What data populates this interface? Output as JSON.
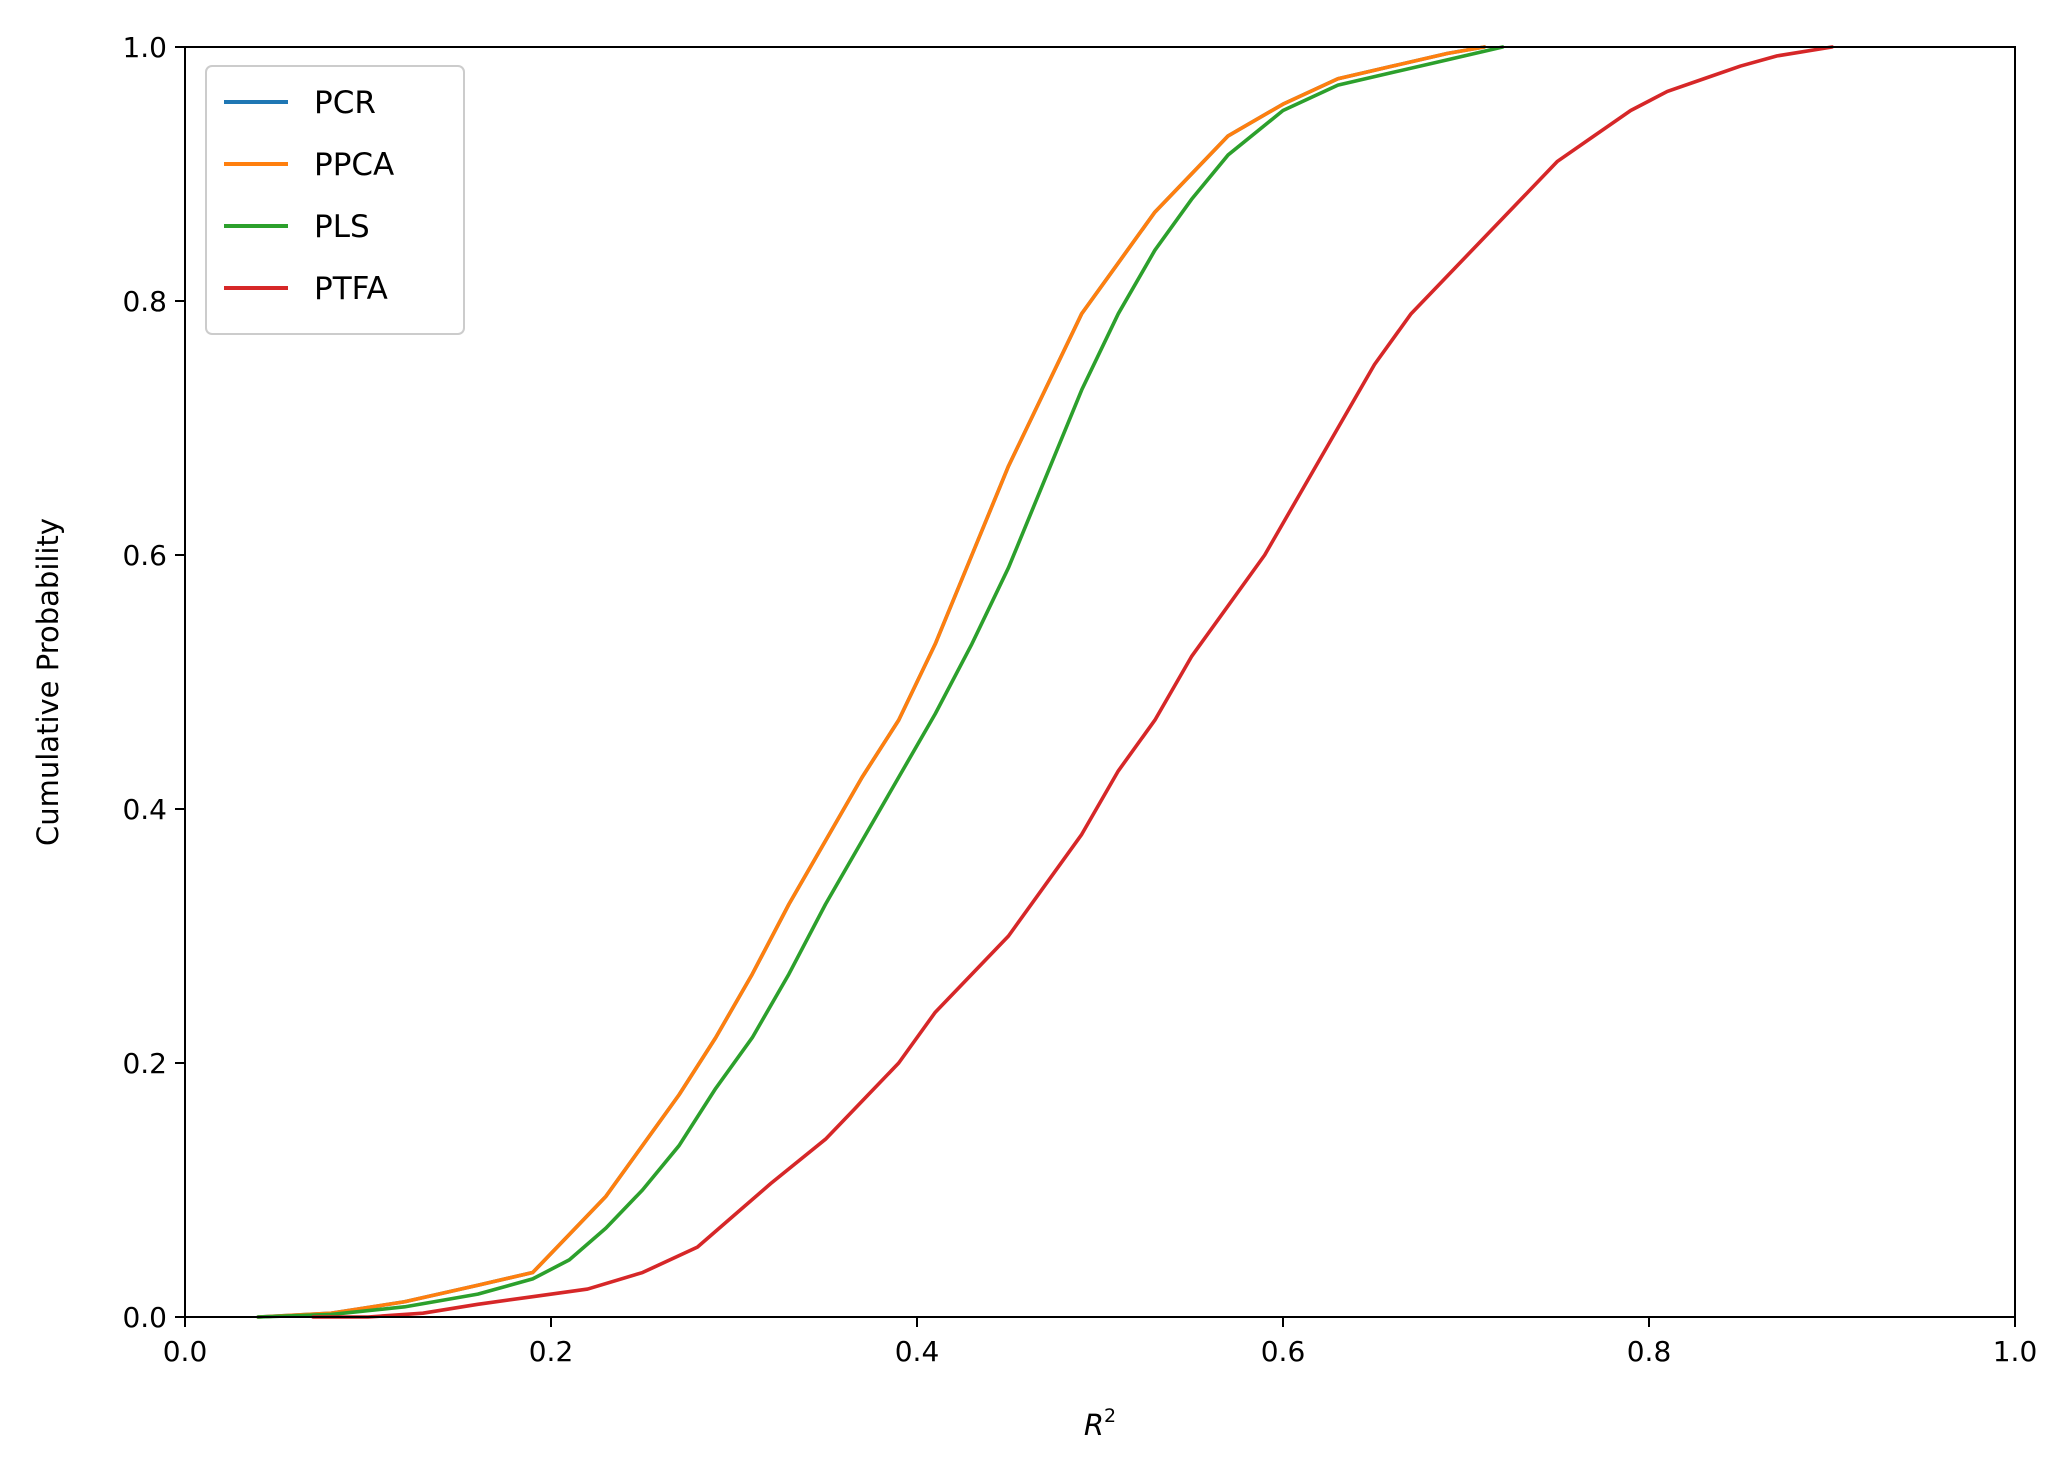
{
  "chart_data": {
    "type": "line",
    "title": "",
    "xlabel": "R",
    "xlabel_superscript": "2",
    "ylabel": "Cumulative Probability",
    "xlim": [
      0.0,
      1.0
    ],
    "ylim": [
      0.0,
      1.0
    ],
    "x_ticks": [
      "0.0",
      "0.2",
      "0.4",
      "0.6",
      "0.8",
      "1.0"
    ],
    "y_ticks": [
      "0.0",
      "0.2",
      "0.4",
      "0.6",
      "0.8",
      "1.0"
    ],
    "grid": false,
    "legend_position": "top-left",
    "series": [
      {
        "name": "PCR",
        "color": "#1f77b4",
        "x": [
          0.04,
          0.08,
          0.12,
          0.16,
          0.19,
          0.21,
          0.23,
          0.25,
          0.27,
          0.29,
          0.31,
          0.33,
          0.35,
          0.37,
          0.39,
          0.41,
          0.43,
          0.45,
          0.47,
          0.49,
          0.51,
          0.53,
          0.55,
          0.57,
          0.6,
          0.63,
          0.66,
          0.69,
          0.71
        ],
        "y": [
          0.0,
          0.003,
          0.012,
          0.025,
          0.035,
          0.065,
          0.095,
          0.135,
          0.175,
          0.22,
          0.27,
          0.325,
          0.375,
          0.425,
          0.47,
          0.53,
          0.6,
          0.67,
          0.73,
          0.79,
          0.83,
          0.87,
          0.9,
          0.93,
          0.955,
          0.975,
          0.985,
          0.995,
          1.0
        ]
      },
      {
        "name": "PPCA",
        "color": "#ff7f0e",
        "x": [
          0.04,
          0.08,
          0.12,
          0.16,
          0.19,
          0.21,
          0.23,
          0.25,
          0.27,
          0.29,
          0.31,
          0.33,
          0.35,
          0.37,
          0.39,
          0.41,
          0.43,
          0.45,
          0.47,
          0.49,
          0.51,
          0.53,
          0.55,
          0.57,
          0.6,
          0.63,
          0.66,
          0.69,
          0.71
        ],
        "y": [
          0.0,
          0.003,
          0.012,
          0.025,
          0.035,
          0.065,
          0.095,
          0.135,
          0.175,
          0.22,
          0.27,
          0.325,
          0.375,
          0.425,
          0.47,
          0.53,
          0.6,
          0.67,
          0.73,
          0.79,
          0.83,
          0.87,
          0.9,
          0.93,
          0.955,
          0.975,
          0.985,
          0.995,
          1.0
        ]
      },
      {
        "name": "PLS",
        "color": "#2ca02c",
        "x": [
          0.04,
          0.08,
          0.12,
          0.16,
          0.19,
          0.21,
          0.23,
          0.25,
          0.27,
          0.29,
          0.31,
          0.33,
          0.35,
          0.37,
          0.39,
          0.41,
          0.43,
          0.45,
          0.47,
          0.49,
          0.51,
          0.53,
          0.55,
          0.57,
          0.6,
          0.63,
          0.66,
          0.69,
          0.72
        ],
        "y": [
          0.0,
          0.002,
          0.008,
          0.018,
          0.03,
          0.045,
          0.07,
          0.1,
          0.135,
          0.18,
          0.22,
          0.27,
          0.325,
          0.375,
          0.425,
          0.475,
          0.53,
          0.59,
          0.66,
          0.73,
          0.79,
          0.84,
          0.88,
          0.915,
          0.95,
          0.97,
          0.98,
          0.99,
          1.0
        ]
      },
      {
        "name": "PTFA",
        "color": "#d62728",
        "x": [
          0.07,
          0.1,
          0.13,
          0.16,
          0.19,
          0.22,
          0.25,
          0.28,
          0.3,
          0.32,
          0.35,
          0.37,
          0.39,
          0.41,
          0.43,
          0.45,
          0.47,
          0.49,
          0.51,
          0.53,
          0.55,
          0.57,
          0.59,
          0.61,
          0.63,
          0.65,
          0.67,
          0.69,
          0.71,
          0.73,
          0.75,
          0.77,
          0.79,
          0.81,
          0.83,
          0.85,
          0.87,
          0.9
        ],
        "y": [
          0.0,
          0.0,
          0.003,
          0.01,
          0.016,
          0.022,
          0.035,
          0.055,
          0.08,
          0.105,
          0.14,
          0.17,
          0.2,
          0.24,
          0.27,
          0.3,
          0.34,
          0.38,
          0.43,
          0.47,
          0.52,
          0.56,
          0.6,
          0.65,
          0.7,
          0.75,
          0.79,
          0.82,
          0.85,
          0.88,
          0.91,
          0.93,
          0.95,
          0.965,
          0.975,
          0.985,
          0.993,
          1.0
        ]
      }
    ]
  }
}
